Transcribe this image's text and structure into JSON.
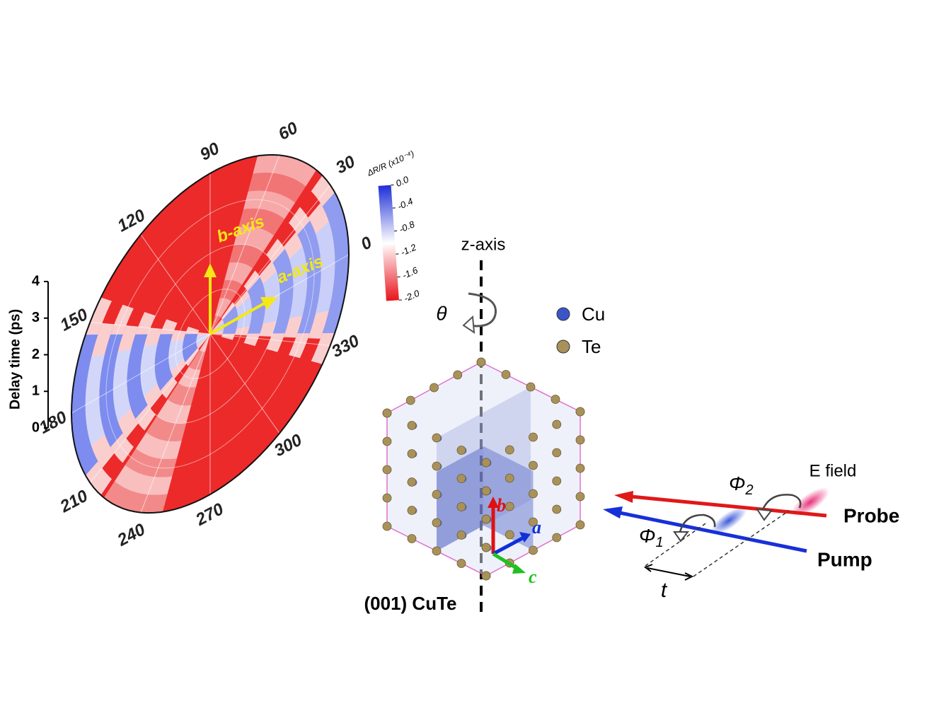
{
  "polar_plot": {
    "angle_labels": [
      0,
      30,
      60,
      90,
      120,
      150,
      180,
      210,
      240,
      270,
      300,
      330
    ],
    "axes": {
      "b": "b-axis",
      "a": "a-axis"
    },
    "delay_axis": {
      "label": "Delay time (ps)",
      "ticks": [
        0,
        1,
        2,
        3,
        4
      ]
    },
    "colorbar": {
      "title": "ΔR/R (x10⁻⁴)",
      "ticks": [
        {
          "value": 0,
          "label": "0.0"
        },
        {
          "value": -0.4,
          "label": "-0.4"
        },
        {
          "value": -0.8,
          "label": "-0.8"
        },
        {
          "value": -1.2,
          "label": "-1.2"
        },
        {
          "value": -1.6,
          "label": "-1.6"
        },
        {
          "value": -2,
          "label": "-2.0"
        }
      ]
    }
  },
  "rotation": {
    "axis_label": "z-axis",
    "angle_symbol": "θ"
  },
  "legend": [
    {
      "label": "Cu",
      "color": "#3b55c8"
    },
    {
      "label": "Te",
      "color": "#a8925a"
    }
  ],
  "crystal": {
    "label": "(001) CuTe",
    "axes": {
      "b": "b",
      "a": "a",
      "c": "c"
    }
  },
  "beams": {
    "field_label": "E field",
    "phi2": {
      "symbol": "Φ",
      "sub": "2"
    },
    "phi1": {
      "symbol": "Φ",
      "sub": "1"
    },
    "probe": "Probe",
    "pump": "Pump",
    "delay": "t"
  }
}
